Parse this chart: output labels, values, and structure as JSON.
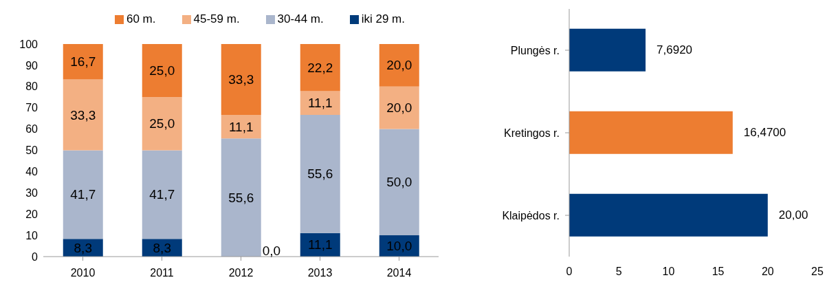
{
  "chart_data": [
    {
      "type": "bar",
      "stacked": true,
      "categories": [
        "2010",
        "2011",
        "2012",
        "2013",
        "2014"
      ],
      "series": [
        {
          "name": "iki 29 m.",
          "color": "#003a7a",
          "values": [
            8.3,
            8.3,
            0.0,
            11.1,
            10.0
          ],
          "value_labels": [
            "8,3",
            "8,3",
            "0,0",
            "11,1",
            "10,0"
          ]
        },
        {
          "name": "30-44 m.",
          "color": "#aab6cc",
          "values": [
            41.7,
            41.7,
            55.6,
            55.6,
            50.0
          ],
          "value_labels": [
            "41,7",
            "41,7",
            "55,6",
            "55,6",
            "50,0"
          ]
        },
        {
          "name": "45-59 m.",
          "color": "#f3b083",
          "values": [
            33.3,
            25.0,
            11.1,
            11.1,
            20.0
          ],
          "value_labels": [
            "33,3",
            "25,0",
            "11,1",
            "11,1",
            "20,0"
          ]
        },
        {
          "name": "60 m.",
          "color": "#ed7d31",
          "values": [
            16.7,
            25.0,
            33.3,
            22.2,
            20.0
          ],
          "value_labels": [
            "16,7",
            "25,0",
            "33,3",
            "22,2",
            "20,0"
          ]
        }
      ],
      "ylim": [
        0,
        100
      ],
      "yticks": [
        0,
        10,
        20,
        30,
        40,
        50,
        60,
        70,
        80,
        90,
        100
      ],
      "legend": "top"
    },
    {
      "type": "bar",
      "orientation": "horizontal",
      "categories": [
        "Plungės r.",
        "Kretingos r.",
        "Klaipėdos r."
      ],
      "values": [
        7.692,
        16.47,
        20
      ],
      "colors": [
        "#003a7a",
        "#ed7d31",
        "#003a7a"
      ],
      "value_labels": [
        "7,6920",
        "16,4700",
        "20,00"
      ],
      "xlim": [
        0,
        25
      ],
      "xticks": [
        0,
        5,
        10,
        15,
        20,
        25
      ]
    }
  ]
}
